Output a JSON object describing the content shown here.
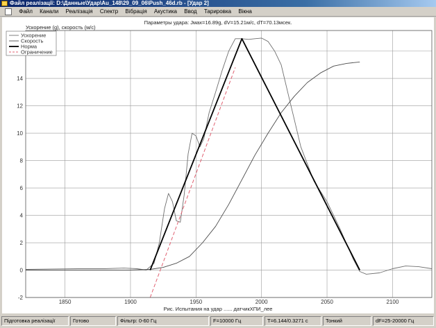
{
  "window": {
    "title": "Файл реалізації: D:\\Данные\\Удар\\Au_148\\29_09_06\\Push_46d.rb - [Удар 2]"
  },
  "menu": [
    "Файл",
    "Канали",
    "Реалізація",
    "Спектр",
    "Вібрація",
    "Акустика",
    "Ввод",
    "Тарировка",
    "Вікна"
  ],
  "chart_data": {
    "type": "line",
    "title": "Параметры удара: Jмах=16.89g, dV=15.21м/с, dT=70.13мсек.",
    "ylabel": "Ускорение (g), скорость (м/с)",
    "xlabel": "Рис.  Испытания на удар ...... датчикХПИ_лее",
    "xlim": [
      1820,
      2130
    ],
    "ylim": [
      -2,
      17.5
    ],
    "x_ticks": [
      1850,
      1900,
      1950,
      2000,
      2050,
      2100
    ],
    "y_ticks": [
      -2,
      0,
      2,
      4,
      6,
      8,
      10,
      12,
      14,
      16
    ],
    "grid": true,
    "legend_position": "top-left",
    "series": [
      {
        "name": "Ускорение",
        "color": "#6e6e6e",
        "x": [
          1820,
          1840,
          1860,
          1880,
          1895,
          1905,
          1912,
          1918,
          1922,
          1926,
          1929,
          1932,
          1935,
          1938,
          1941,
          1944,
          1947,
          1950,
          1953,
          1956,
          1960,
          1965,
          1970,
          1975,
          1980,
          1985,
          1990,
          1995,
          2000,
          2005,
          2010,
          2015,
          2020,
          2025,
          2030,
          2040,
          2050,
          2060,
          2070,
          2075,
          2080,
          2090,
          2100,
          2110,
          2120,
          2130
        ],
        "y": [
          0.05,
          0.08,
          0.1,
          0.1,
          0.15,
          0.1,
          0.0,
          0.5,
          2.0,
          4.5,
          5.6,
          5.0,
          3.6,
          3.5,
          5.5,
          8.5,
          10.0,
          9.8,
          9.0,
          9.6,
          11.5,
          13.0,
          14.6,
          16.0,
          16.9,
          16.9,
          16.85,
          16.9,
          16.95,
          16.7,
          16.0,
          15.0,
          13.0,
          11.0,
          9.0,
          6.5,
          5.0,
          3.0,
          0.8,
          -0.1,
          -0.3,
          -0.2,
          0.1,
          0.3,
          0.25,
          0.1
        ]
      },
      {
        "name": "Скорость",
        "color": "#4a4a4a",
        "x": [
          1820,
          1900,
          1915,
          1925,
          1935,
          1945,
          1955,
          1965,
          1975,
          1985,
          1995,
          2005,
          2015,
          2025,
          2035,
          2045,
          2055,
          2065,
          2075
        ],
        "y": [
          0.0,
          0.0,
          0.05,
          0.2,
          0.5,
          1.0,
          2.0,
          3.2,
          4.8,
          6.6,
          8.4,
          10.0,
          11.5,
          12.7,
          13.7,
          14.4,
          14.9,
          15.1,
          15.2
        ]
      },
      {
        "name": "Норма",
        "color": "#000000",
        "x": [
          1915,
          1985,
          2075
        ],
        "y": [
          0,
          16.9,
          0
        ]
      },
      {
        "name": "Ограничение",
        "color": "#e06070",
        "x": [
          1915,
          1980
        ],
        "y": [
          -2,
          14.8
        ]
      }
    ]
  },
  "status": {
    "s1": "Підготовка реалізації",
    "s2": "Готово",
    "s3": "Фільтр: 0-60 Гц",
    "s4": "F=10000 Гц",
    "s5": "T=6.144/0.3271 c",
    "s6": "Тонкий",
    "s7": "dF=25-20000 Гц"
  }
}
